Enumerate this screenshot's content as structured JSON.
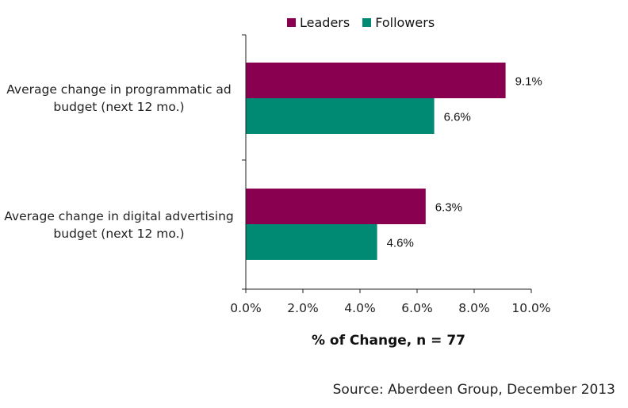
{
  "chart_data": {
    "type": "bar",
    "orientation": "horizontal",
    "categories": [
      "Average change in programmatic ad budget (next 12 mo.)",
      "Average change in digital advertising budget (next 12 mo.)"
    ],
    "series": [
      {
        "name": "Leaders",
        "values": [
          9.1,
          6.3
        ],
        "color": "#8a0050",
        "labels": [
          "9.1%",
          "6.3%"
        ]
      },
      {
        "name": "Followers",
        "values": [
          6.6,
          4.6
        ],
        "color": "#008a73",
        "labels": [
          "6.6%",
          "4.6%"
        ]
      }
    ],
    "xlabel": "% of Change, n = 77",
    "xlim": [
      0,
      10
    ],
    "xticks": [
      "0.0%",
      "2.0%",
      "4.0%",
      "6.0%",
      "8.0%",
      "10.0%"
    ],
    "legend_position": "top",
    "grid": false
  },
  "labels": {
    "category_1_line_1": "Average change in programmatic ad",
    "category_1_line_2": "budget (next 12 mo.)",
    "category_2_line_1": "Average change in digital advertising",
    "category_2_line_2": "budget (next 12 mo.)"
  },
  "source": "Source: Aberdeen Group, December  2013"
}
